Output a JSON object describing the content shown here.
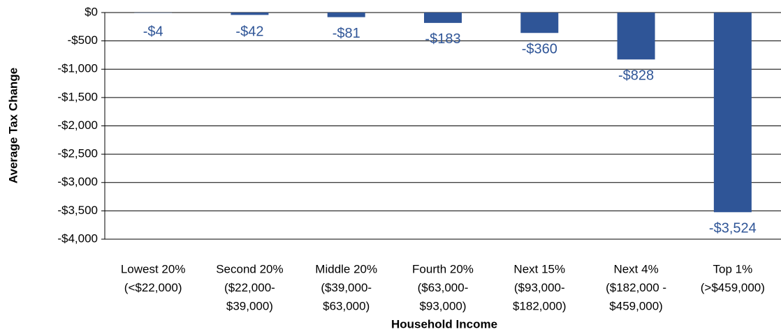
{
  "chart_data": {
    "type": "bar",
    "y_label": "Average Tax Change",
    "x_label": "Household Income",
    "categories": [
      [
        "Lowest 20%",
        "(<$22,000)"
      ],
      [
        "Second 20%",
        "($22,000-",
        "$39,000)"
      ],
      [
        "Middle 20%",
        "($39,000-",
        "$63,000)"
      ],
      [
        "Fourth 20%",
        "($63,000-",
        "$93,000)"
      ],
      [
        "Next 15%",
        "($93,000-",
        "$182,000)"
      ],
      [
        "Next 4%",
        "($182,000 -",
        "$459,000)"
      ],
      [
        "Top 1%",
        "(>$459,000)"
      ]
    ],
    "values": [
      -4,
      -42,
      -81,
      -183,
      -360,
      -828,
      -3524
    ],
    "value_labels": [
      "-$4",
      "-$42",
      "-$81",
      "-$183",
      "-$360",
      "-$828",
      "-$3,524"
    ],
    "color": "#2f5597",
    "ylim": [
      -4000,
      0
    ],
    "yticks": [
      {
        "value": 0,
        "label": "$0"
      },
      {
        "value": -500,
        "label": "-$500"
      },
      {
        "value": -1000,
        "label": "-$1,000"
      },
      {
        "value": -1500,
        "label": "-$1,500"
      },
      {
        "value": -2000,
        "label": "-$2,000"
      },
      {
        "value": -2500,
        "label": "-$2,500"
      },
      {
        "value": -3000,
        "label": "-$3,000"
      },
      {
        "value": -3500,
        "label": "-$3,500"
      },
      {
        "value": -4000,
        "label": "-$4,000"
      }
    ],
    "grid": true
  }
}
